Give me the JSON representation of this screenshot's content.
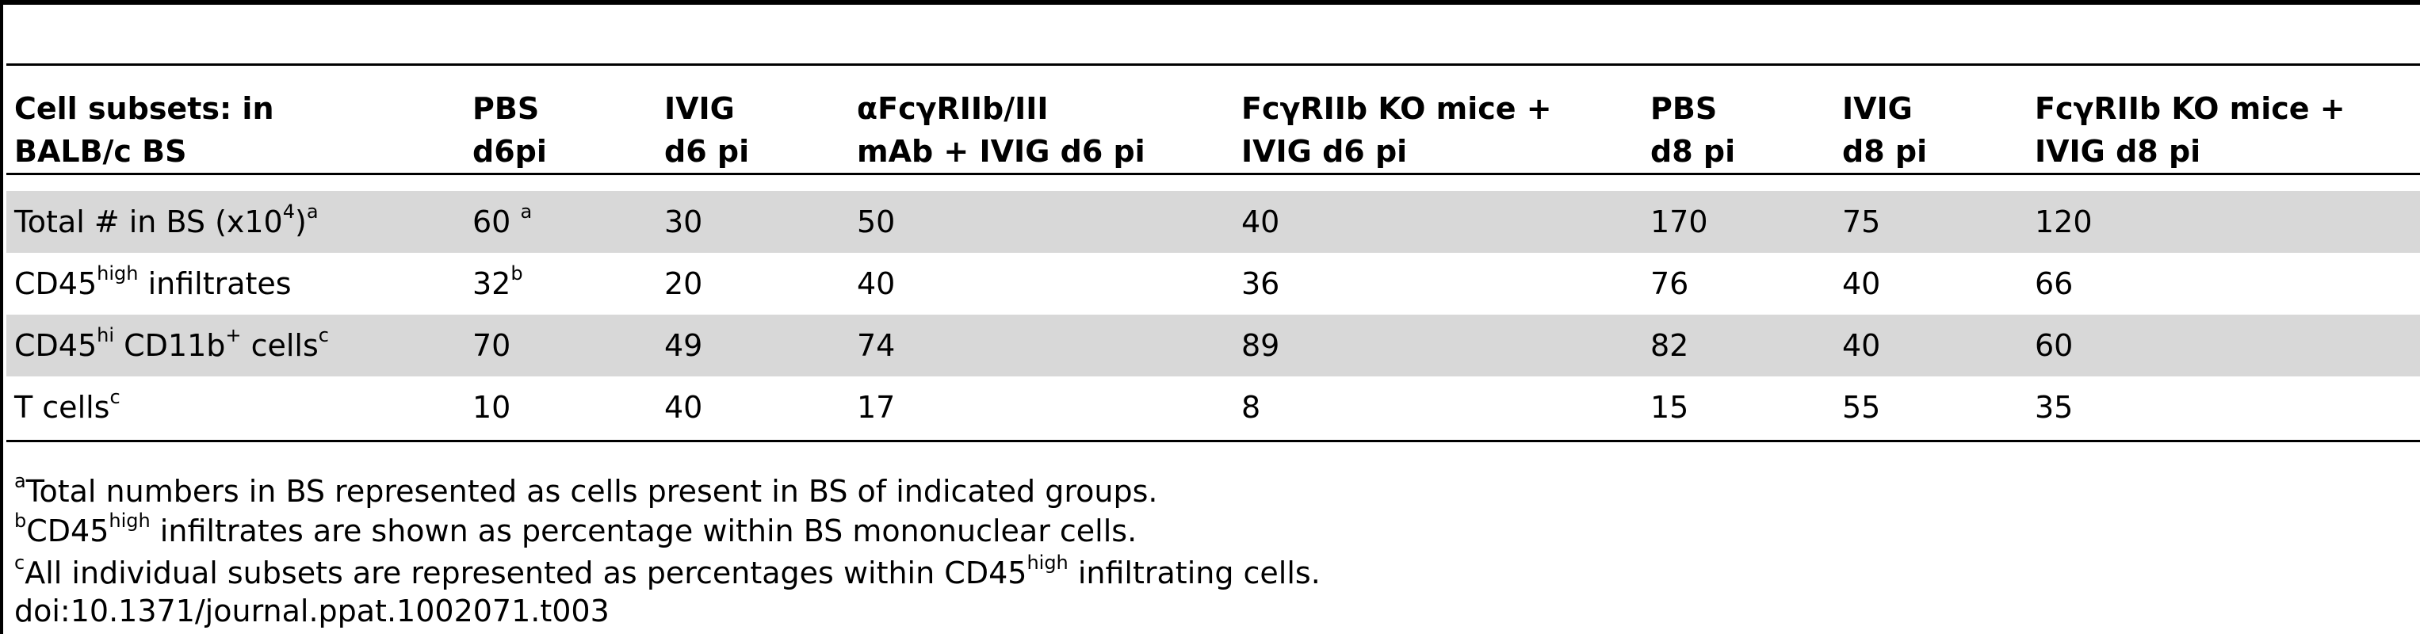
{
  "headers": [
    {
      "line1": "Cell subsets: in",
      "line2": "BALB/c BS"
    },
    {
      "line1": "PBS",
      "line2": "d6pi"
    },
    {
      "line1": "IVIG",
      "line2": "d6 pi"
    },
    {
      "line1": "αFcγRIIb/III",
      "line2": "mAb + IVIG d6 pi"
    },
    {
      "line1": "FcγRIIb KO mice +",
      "line2": "IVIG d6 pi"
    },
    {
      "line1": "PBS",
      "line2": "d8 pi"
    },
    {
      "line1": "IVIG",
      "line2": "d8 pi"
    },
    {
      "line1": "FcγRIIb KO mice +",
      "line2": "IVIG d8 pi"
    }
  ],
  "rows": [
    {
      "label": "Total # in BS (x10",
      "label_sup": "4",
      "label_after": ")",
      "label_note": "a",
      "values": [
        "60",
        "30",
        "50",
        "40",
        "170",
        "75",
        "120"
      ],
      "first_value_note": "a"
    },
    {
      "label": "CD45",
      "label_sup": "high",
      "label_after": " infiltrates",
      "label_note": "",
      "values": [
        "32",
        "20",
        "40",
        "36",
        "76",
        "40",
        "66"
      ],
      "first_value_note": "b"
    },
    {
      "label": "CD45",
      "label_sup": "hi",
      "label_after": " CD11b",
      "label_sup2": "+",
      "label_after2": " cells",
      "label_note": "c",
      "values": [
        "70",
        "49",
        "74",
        "89",
        "82",
        "40",
        "60"
      ],
      "first_value_note": ""
    },
    {
      "label": "T cells",
      "label_note": "c",
      "values": [
        "10",
        "40",
        "17",
        "8",
        "15",
        "55",
        "35"
      ],
      "first_value_note": ""
    }
  ],
  "footnotes": {
    "a": {
      "mark": "a",
      "text": "Total numbers in BS represented as cells present in BS of indicated groups."
    },
    "b": {
      "mark": "b",
      "pre": "CD45",
      "sup": "high",
      "post": " infiltrates are shown as percentage within BS mononuclear cells."
    },
    "c": {
      "mark": "c",
      "pre": "All individual subsets are represented as percentages within CD45",
      "sup": "high",
      "post": " infiltrating cells."
    },
    "doi": "doi:10.1371/journal.ppat.1002071.t003"
  }
}
